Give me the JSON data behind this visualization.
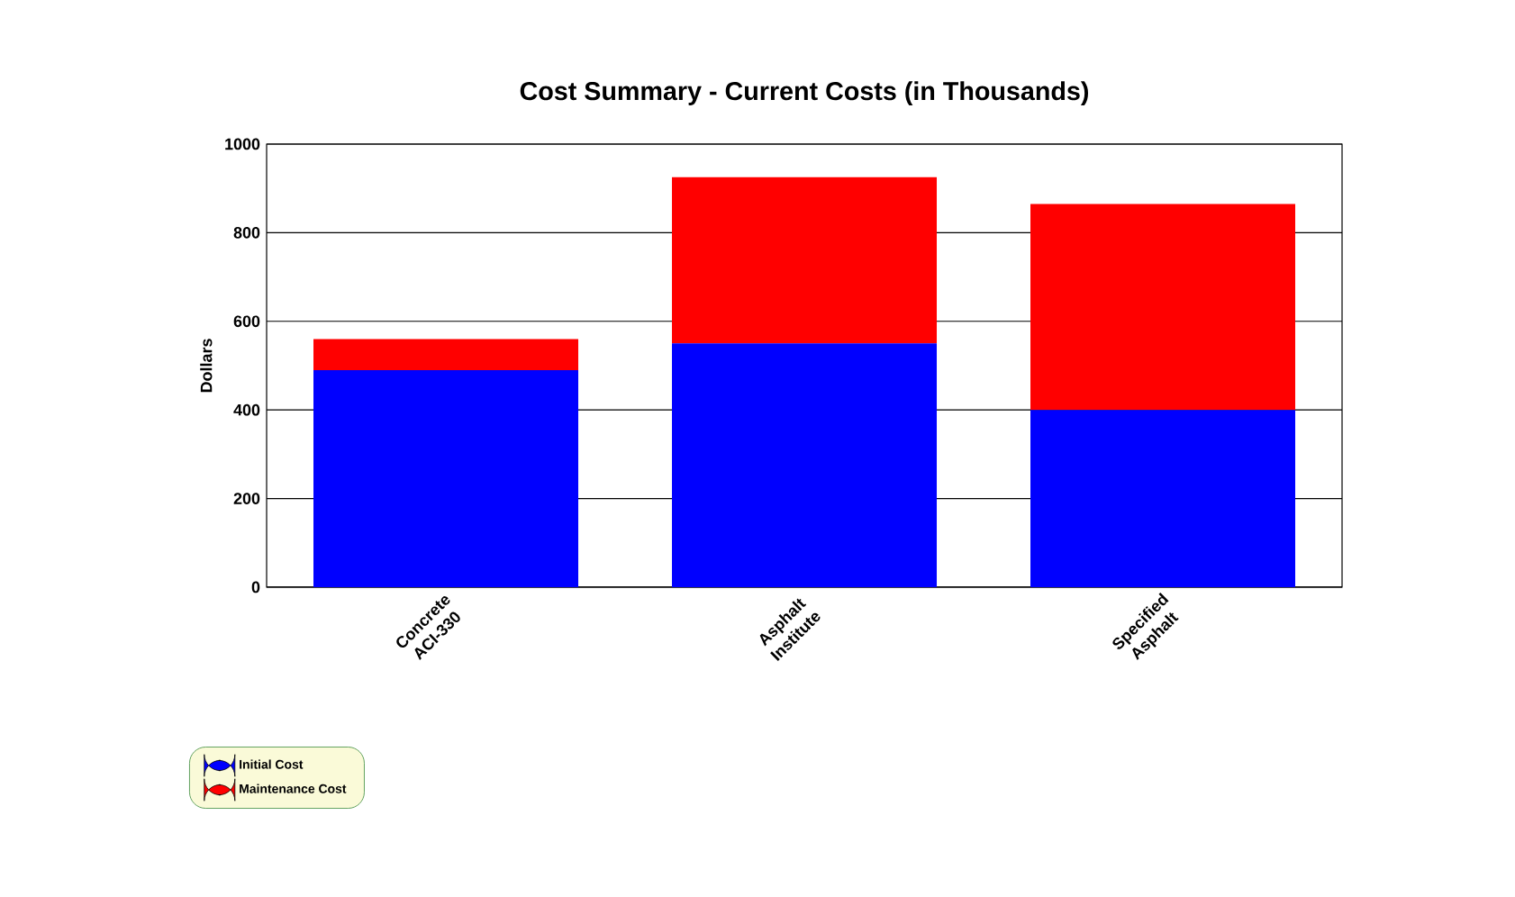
{
  "chart_data": {
    "type": "bar",
    "title": "Cost Summary - Current Costs (in Thousands)",
    "ylabel": "Dollars",
    "categories": [
      "Concrete ACI-330",
      "Asphalt Institute",
      "Specified Asphalt"
    ],
    "series": [
      {
        "name": "Initial Cost",
        "color": "#0000ff",
        "values": [
          490,
          550,
          400
        ]
      },
      {
        "name": "Maintenance Cost",
        "color": "#ff0000",
        "values": [
          70,
          375,
          465
        ]
      }
    ],
    "stacked": true,
    "ylim": [
      0,
      1000
    ],
    "yticks": [
      0,
      200,
      400,
      600,
      800,
      1000
    ],
    "grid": "y",
    "legend": "bottom left"
  }
}
